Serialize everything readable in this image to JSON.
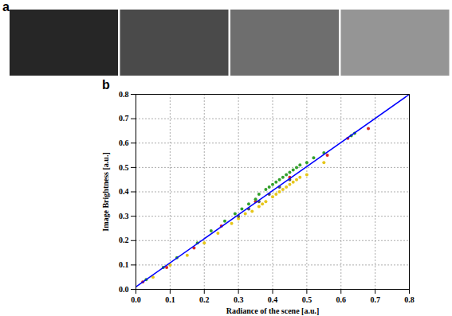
{
  "chart_data": [
    {
      "type": "images",
      "title": "a"
    },
    {
      "type": "scatter",
      "title": "b",
      "xlabel": "Radiance of the scene [a.u.]",
      "ylabel": "Image Brightness [a.u.]",
      "xlim": [
        0,
        0.8
      ],
      "ylim": [
        0,
        0.8
      ],
      "xticks": [
        {
          "value": 0,
          "label": "0.0"
        },
        {
          "value": 0.1,
          "label": "0.1"
        },
        {
          "value": 0.2,
          "label": "0.2"
        },
        {
          "value": 0.3,
          "label": "0.3"
        },
        {
          "value": 0.4,
          "label": "0.4"
        },
        {
          "value": 0.5,
          "label": "0.5"
        },
        {
          "value": 0.6,
          "label": "0.6"
        },
        {
          "value": 0.7,
          "label": "0.7"
        },
        {
          "value": 0.8,
          "label": "0.8"
        }
      ],
      "yticks": [
        {
          "value": 0,
          "label": "0.0"
        },
        {
          "value": 0.1,
          "label": "0.1"
        },
        {
          "value": 0.2,
          "label": "0.2"
        },
        {
          "value": 0.3,
          "label": "0.3"
        },
        {
          "value": 0.4,
          "label": "0.4"
        },
        {
          "value": 0.5,
          "label": "0.5"
        },
        {
          "value": 0.6,
          "label": "0.6"
        },
        {
          "value": 0.7,
          "label": "0.7"
        },
        {
          "value": 0.8,
          "label": "0.8"
        }
      ],
      "grid": true,
      "series": [
        {
          "type": "scatter",
          "color": "#e6c619",
          "x": [
            0.05,
            0.1,
            0.15,
            0.2,
            0.24,
            0.28,
            0.3,
            0.32,
            0.34,
            0.36,
            0.37,
            0.38,
            0.4,
            0.41,
            0.42,
            0.43,
            0.44,
            0.45,
            0.46,
            0.47,
            0.48,
            0.5,
            0.55
          ],
          "values": [
            0.05,
            0.1,
            0.14,
            0.19,
            0.23,
            0.27,
            0.29,
            0.31,
            0.32,
            0.34,
            0.35,
            0.36,
            0.38,
            0.39,
            0.4,
            0.41,
            0.42,
            0.43,
            0.44,
            0.45,
            0.46,
            0.47,
            0.52
          ]
        },
        {
          "type": "scatter",
          "color": "#555555",
          "x": [
            0.3,
            0.33,
            0.36,
            0.39,
            0.42,
            0.45
          ],
          "values": [
            0.3,
            0.33,
            0.36,
            0.39,
            0.42,
            0.45
          ]
        },
        {
          "type": "scatter",
          "color": "#d62728",
          "x": [
            0.02,
            0.09,
            0.17,
            0.25,
            0.35,
            0.45,
            0.56,
            0.62,
            0.68
          ],
          "values": [
            0.03,
            0.09,
            0.17,
            0.26,
            0.36,
            0.46,
            0.55,
            0.62,
            0.66
          ]
        },
        {
          "type": "scatter",
          "color": "#33a02c",
          "x": [
            0.03,
            0.08,
            0.12,
            0.18,
            0.22,
            0.26,
            0.29,
            0.31,
            0.33,
            0.35,
            0.36,
            0.38,
            0.39,
            0.4,
            0.41,
            0.42,
            0.43,
            0.44,
            0.45,
            0.46,
            0.47,
            0.48,
            0.5,
            0.52,
            0.55,
            0.63,
            0.64
          ],
          "values": [
            0.04,
            0.09,
            0.13,
            0.19,
            0.24,
            0.28,
            0.31,
            0.33,
            0.35,
            0.37,
            0.39,
            0.41,
            0.42,
            0.43,
            0.44,
            0.45,
            0.46,
            0.47,
            0.48,
            0.49,
            0.5,
            0.51,
            0.52,
            0.54,
            0.56,
            0.63,
            0.64
          ]
        },
        {
          "type": "line",
          "color": "#0000ff",
          "x": [
            0,
            0.8
          ],
          "values": [
            0.01,
            0.8
          ]
        }
      ]
    }
  ]
}
